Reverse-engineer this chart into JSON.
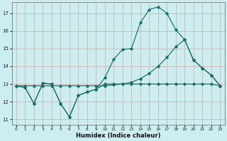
{
  "xlabel": "Humidex (Indice chaleur)",
  "bg_color": "#cceef0",
  "grid_color": "#d4b8b8",
  "line_color": "#1a6e6a",
  "xlim": [
    -0.5,
    23.5
  ],
  "ylim": [
    10.7,
    17.6
  ],
  "xticks": [
    0,
    1,
    2,
    3,
    4,
    5,
    6,
    7,
    8,
    9,
    10,
    11,
    12,
    13,
    14,
    15,
    16,
    17,
    18,
    19,
    20,
    21,
    22,
    23
  ],
  "yticks": [
    11,
    12,
    13,
    14,
    15,
    16,
    17
  ],
  "line1_x": [
    0,
    1,
    2,
    3,
    4,
    5,
    6,
    7,
    8,
    9,
    10,
    11,
    12,
    13,
    14,
    15,
    16,
    17,
    18,
    19,
    20,
    21,
    22,
    23
  ],
  "line1_y": [
    12.9,
    12.8,
    11.9,
    13.05,
    13.0,
    11.9,
    11.15,
    12.35,
    12.55,
    12.7,
    13.0,
    13.0,
    13.0,
    13.0,
    13.0,
    13.0,
    13.0,
    13.0,
    13.0,
    13.0,
    13.0,
    13.0,
    13.0,
    12.9
  ],
  "line2_x": [
    0,
    1,
    2,
    3,
    4,
    5,
    6,
    7,
    8,
    9,
    10,
    11,
    12,
    13,
    14,
    15,
    16,
    17,
    18,
    19,
    20,
    21,
    22,
    23
  ],
  "line2_y": [
    12.9,
    12.8,
    11.9,
    13.05,
    13.0,
    11.9,
    11.15,
    12.35,
    12.55,
    12.7,
    13.35,
    14.4,
    14.95,
    15.0,
    16.45,
    17.2,
    17.35,
    17.0,
    16.05,
    15.5,
    14.35,
    13.9,
    13.5,
    12.9
  ],
  "line3_x": [
    0,
    1,
    2,
    3,
    4,
    5,
    6,
    7,
    8,
    9,
    10,
    11,
    12,
    13,
    14,
    15,
    16,
    17,
    18,
    19,
    20,
    21,
    22,
    23
  ],
  "line3_y": [
    12.9,
    12.9,
    12.9,
    12.9,
    12.9,
    12.9,
    12.9,
    12.9,
    12.9,
    12.9,
    12.9,
    12.95,
    13.0,
    13.1,
    13.3,
    13.6,
    14.0,
    14.5,
    15.1,
    15.5,
    14.35,
    13.9,
    13.5,
    12.9
  ]
}
